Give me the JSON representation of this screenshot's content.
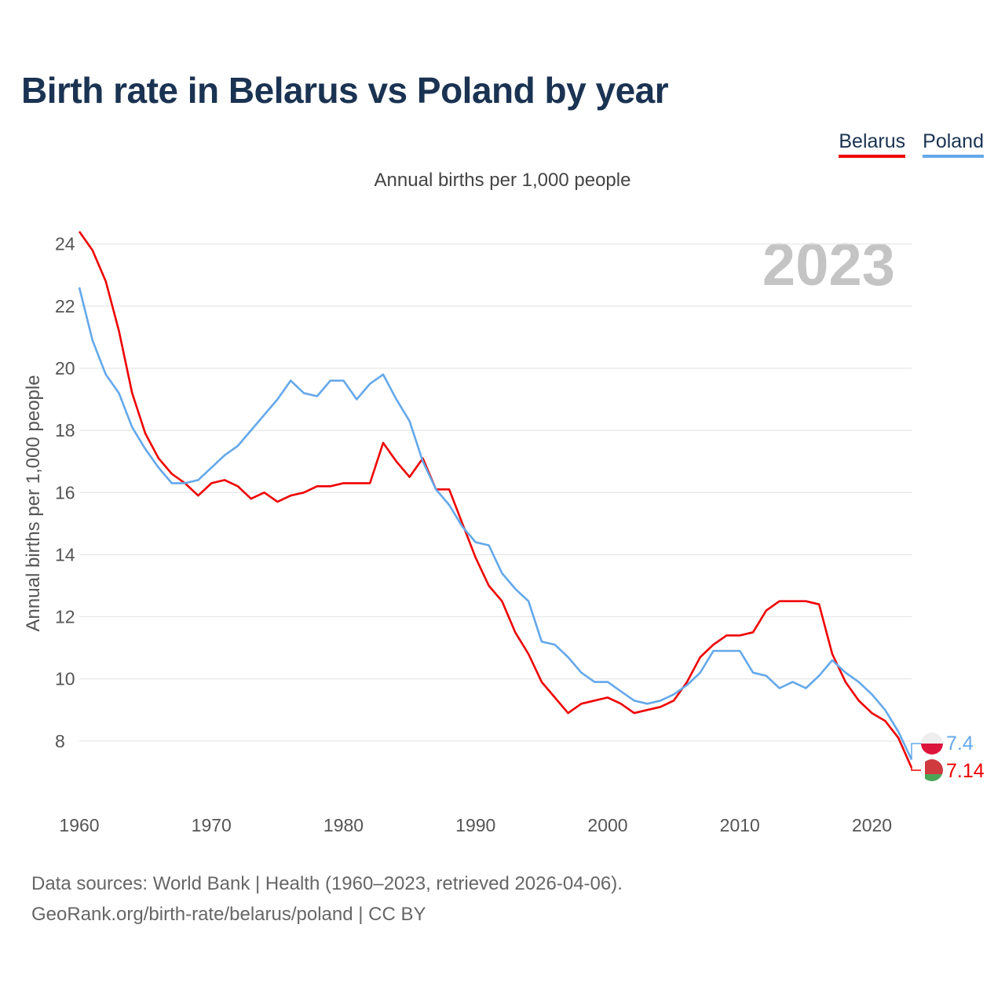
{
  "title": "Birth rate in Belarus vs Poland by year",
  "legend": {
    "belarus": "Belarus",
    "poland": "Poland"
  },
  "subtitle": "Annual births per 1,000 people",
  "year_display": "2023",
  "footer": {
    "line1": "Data sources: World Bank | Health (1960–2023, retrieved 2026-04-06).",
    "line2": "GeoRank.org/birth-rate/belarus/poland | CC BY"
  },
  "colors": {
    "belarus": "#ee0000",
    "poland": "#64a8ea",
    "grid": "#e6e6e6"
  },
  "chart_data": {
    "type": "line",
    "title": "Birth rate in Belarus vs Poland by year",
    "xlabel": "",
    "ylabel": "Annual births per 1,000 people",
    "xlim": [
      1960,
      2023
    ],
    "ylim": [
      6.2,
      24.6
    ],
    "x_ticks": [
      1960,
      1970,
      1980,
      1990,
      2000,
      2010,
      2020
    ],
    "y_ticks": [
      8,
      10,
      12,
      14,
      16,
      18,
      20,
      22,
      24
    ],
    "x": [
      1960,
      1961,
      1962,
      1963,
      1964,
      1965,
      1966,
      1967,
      1968,
      1969,
      1970,
      1971,
      1972,
      1973,
      1974,
      1975,
      1976,
      1977,
      1978,
      1979,
      1980,
      1981,
      1982,
      1983,
      1984,
      1985,
      1986,
      1987,
      1988,
      1989,
      1990,
      1991,
      1992,
      1993,
      1994,
      1995,
      1996,
      1997,
      1998,
      1999,
      2000,
      2001,
      2002,
      2003,
      2004,
      2005,
      2006,
      2007,
      2008,
      2009,
      2010,
      2011,
      2012,
      2013,
      2014,
      2015,
      2016,
      2017,
      2018,
      2019,
      2020,
      2021,
      2022,
      2023
    ],
    "series": [
      {
        "name": "Belarus",
        "end_label": "7.14",
        "values": [
          24.4,
          23.8,
          22.8,
          21.2,
          19.2,
          17.9,
          17.1,
          16.6,
          16.3,
          15.9,
          16.3,
          16.4,
          16.2,
          15.8,
          16.0,
          15.7,
          15.9,
          16.0,
          16.2,
          16.2,
          16.3,
          16.3,
          16.3,
          17.6,
          17.0,
          16.5,
          17.1,
          16.1,
          16.1,
          15.0,
          13.9,
          13.0,
          12.5,
          11.5,
          10.8,
          9.9,
          9.4,
          8.9,
          9.2,
          9.3,
          9.4,
          9.2,
          8.9,
          9.0,
          9.1,
          9.3,
          9.9,
          10.7,
          11.1,
          11.4,
          11.4,
          11.5,
          12.2,
          12.5,
          12.5,
          12.5,
          12.4,
          10.8,
          9.9,
          9.3,
          8.9,
          8.65,
          8.1,
          7.14
        ]
      },
      {
        "name": "Poland",
        "end_label": "7.4",
        "values": [
          22.6,
          20.9,
          19.8,
          19.2,
          18.1,
          17.4,
          16.8,
          16.3,
          16.3,
          16.4,
          16.8,
          17.2,
          17.5,
          18.0,
          18.5,
          19.0,
          19.6,
          19.2,
          19.1,
          19.6,
          19.6,
          19.0,
          19.5,
          19.8,
          19.0,
          18.3,
          17.0,
          16.1,
          15.6,
          14.9,
          14.4,
          14.3,
          13.4,
          12.9,
          12.5,
          11.2,
          11.1,
          10.7,
          10.2,
          9.9,
          9.9,
          9.6,
          9.3,
          9.2,
          9.3,
          9.5,
          9.8,
          10.2,
          10.9,
          10.9,
          10.9,
          10.2,
          10.1,
          9.7,
          9.9,
          9.7,
          10.1,
          10.6,
          10.2,
          9.9,
          9.5,
          9.0,
          8.3,
          7.4
        ]
      }
    ]
  }
}
